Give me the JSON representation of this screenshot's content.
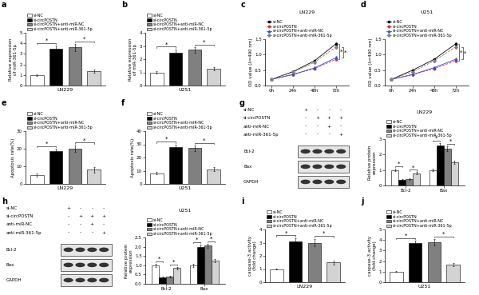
{
  "chart_data": [
    {
      "type": "bar",
      "panel": "a",
      "categories": [
        "si-NC",
        "si-circPOSTN",
        "si-circPOSTN+anti-miR-NC",
        "si-circPOSTN+anti-miR-361-5p"
      ],
      "values": [
        1.0,
        3.5,
        3.6,
        1.4
      ],
      "errors": [
        0.08,
        0.3,
        0.35,
        0.15
      ],
      "colors": [
        "#ffffff",
        "#000000",
        "#808080",
        "#d3d3d3"
      ],
      "ylim": [
        0,
        5
      ],
      "yticks": [
        0,
        1,
        2,
        3,
        4,
        5
      ],
      "x_label": "LN229",
      "y_label": "Relative expression\nof miR-361-5p",
      "legend": "top",
      "tick_labels": "y",
      "annotations": [
        {
          "text": "*",
          "from": 0,
          "to": 1
        },
        {
          "text": "*",
          "from": 2,
          "to": 3
        }
      ]
    },
    {
      "type": "bar",
      "panel": "b",
      "categories": [
        "si-NC",
        "si-circPOSTN",
        "si-circPOSTN+anti-miR-NC",
        "si-circPOSTN+anti-miR-361-5p"
      ],
      "values": [
        1.0,
        2.5,
        2.7,
        1.3
      ],
      "errors": [
        0.08,
        0.25,
        0.2,
        0.12
      ],
      "colors": [
        "#ffffff",
        "#000000",
        "#808080",
        "#d3d3d3"
      ],
      "ylim": [
        0,
        4
      ],
      "yticks": [
        0,
        1,
        2,
        3,
        4
      ],
      "x_label": "U251",
      "y_label": "Relative expression\nof miR-361-5p",
      "legend": "top",
      "tick_labels": "y",
      "annotations": [
        {
          "text": "*",
          "from": 0,
          "to": 1
        },
        {
          "text": "*",
          "from": 2,
          "to": 3
        }
      ]
    },
    {
      "type": "line",
      "panel": "c",
      "title": "LN229",
      "categories": [
        "0h",
        "24h",
        "48h",
        "72h"
      ],
      "series": [
        {
          "name": "si-NC",
          "color": "#000000",
          "marker": "square",
          "line_style": "solid",
          "values": [
            0.2,
            0.45,
            0.8,
            1.35
          ],
          "errors": [
            0.02,
            0.03,
            0.04,
            0.05
          ]
        },
        {
          "name": "si-circPOSTN",
          "color": "#e03030",
          "marker": "circle",
          "line_style": "dashed",
          "values": [
            0.2,
            0.35,
            0.55,
            0.85
          ],
          "errors": [
            0.02,
            0.03,
            0.04,
            0.05
          ]
        },
        {
          "name": "si-circPOSTN+anti-miR-NC",
          "color": "#3050d0",
          "marker": "triangle",
          "line_style": "solid",
          "values": [
            0.2,
            0.36,
            0.57,
            0.9
          ],
          "errors": [
            0.02,
            0.03,
            0.04,
            0.05
          ]
        },
        {
          "name": "si-circPOSTN+anti-miR-361-5p",
          "color": "#808080",
          "marker": "diamond",
          "line_style": "dashed",
          "values": [
            0.2,
            0.43,
            0.75,
            1.25
          ],
          "errors": [
            0.02,
            0.03,
            0.04,
            0.05
          ]
        }
      ],
      "ylim": [
        0,
        1.5
      ],
      "yticks": [
        {
          "value": 0,
          "label": "0.0"
        },
        0.5,
        {
          "value": 1,
          "label": "1.0"
        },
        1.5
      ],
      "y_label": "OD value (λ=490 nm)",
      "legend": "top",
      "annotations": [
        {
          "text": "*",
          "series": [
            0,
            1
          ]
        },
        {
          "text": "*",
          "series": [
            2,
            3
          ]
        }
      ]
    },
    {
      "type": "line",
      "panel": "d",
      "title": "U251",
      "categories": [
        "0h",
        "24h",
        "48h",
        "72h"
      ],
      "series": [
        {
          "name": "si-NC",
          "color": "#000000",
          "marker": "square",
          "line_style": "solid",
          "values": [
            0.2,
            0.5,
            0.85,
            1.35
          ],
          "errors": [
            0.02,
            0.03,
            0.04,
            0.05
          ]
        },
        {
          "name": "si-circPOSTN",
          "color": "#e03030",
          "marker": "circle",
          "line_style": "dashed",
          "values": [
            0.2,
            0.35,
            0.55,
            0.8
          ],
          "errors": [
            0.02,
            0.03,
            0.04,
            0.05
          ]
        },
        {
          "name": "si-circPOSTN+anti-miR-NC",
          "color": "#3050d0",
          "marker": "triangle",
          "line_style": "solid",
          "values": [
            0.2,
            0.36,
            0.58,
            0.85
          ],
          "errors": [
            0.02,
            0.03,
            0.04,
            0.05
          ]
        },
        {
          "name": "si-circPOSTN+anti-miR-361-5p",
          "color": "#808080",
          "marker": "diamond",
          "line_style": "dashed",
          "values": [
            0.2,
            0.45,
            0.8,
            1.25
          ],
          "errors": [
            0.02,
            0.03,
            0.04,
            0.05
          ]
        }
      ],
      "ylim": [
        0,
        1.5
      ],
      "yticks": [
        {
          "value": 0,
          "label": "0.0"
        },
        0.5,
        {
          "value": 1,
          "label": "1.0"
        },
        1.5
      ],
      "y_label": "OD value (λ=490 nm)",
      "legend": "top",
      "annotations": [
        {
          "text": "*",
          "series": [
            0,
            1
          ]
        },
        {
          "text": "*",
          "series": [
            2,
            3
          ]
        }
      ]
    },
    {
      "type": "bar",
      "panel": "e",
      "categories": [
        "si-NC",
        "si-circPOSTN",
        "si-circPOSTN+anti-miR-NC",
        "si-circPOSTN+anti-miR-361-5p"
      ],
      "values": [
        5,
        18.5,
        20,
        8
      ],
      "errors": [
        1,
        1.5,
        2,
        1.5
      ],
      "colors": [
        "#ffffff",
        "#000000",
        "#808080",
        "#d3d3d3"
      ],
      "ylim": [
        0,
        30
      ],
      "yticks": [
        0,
        10,
        20,
        30
      ],
      "x_label": "LN229",
      "y_label": "Apoptosis rate(%)",
      "legend": "top",
      "tick_labels": "y",
      "annotations": [
        {
          "text": "*",
          "from": 0,
          "to": 1
        },
        {
          "text": "*",
          "from": 2,
          "to": 3
        }
      ]
    },
    {
      "type": "bar",
      "panel": "f",
      "categories": [
        "si-NC",
        "si-circPOSTN",
        "si-circPOSTN+anti-miR-NC",
        "si-circPOSTN+anti-miR-361-5p"
      ],
      "values": [
        8,
        28,
        27,
        11
      ],
      "errors": [
        1,
        2,
        2,
        1.5
      ],
      "colors": [
        "#ffffff",
        "#000000",
        "#808080",
        "#d3d3d3"
      ],
      "ylim": [
        0,
        40
      ],
      "yticks": [
        0,
        10,
        20,
        30,
        40
      ],
      "x_label": "U251",
      "y_label": "Apoptosis rate(%)",
      "legend": "top",
      "tick_labels": "y",
      "annotations": [
        {
          "text": "*",
          "from": 0,
          "to": 1
        },
        {
          "text": "*",
          "from": 2,
          "to": 3
        }
      ]
    },
    {
      "type": "blot",
      "panel": "g",
      "conditions": [
        {
          "name": "si-NC",
          "signs": [
            "+",
            "-",
            "-",
            "-"
          ]
        },
        {
          "name": "si-circPOSTN",
          "signs": [
            "-",
            "+",
            "+",
            "+"
          ]
        },
        {
          "name": "anti-miR-NC",
          "signs": [
            "-",
            "-",
            "+",
            "-"
          ]
        },
        {
          "name": "anti-miR-361-5p",
          "signs": [
            "-",
            "-",
            "-",
            "+"
          ]
        }
      ],
      "bands": [
        "Bcl-2",
        "Bax",
        "GAPDH"
      ]
    },
    {
      "type": "grouped_bar",
      "panel": "g",
      "title": "LN229",
      "categories": [
        "Bcl-2",
        "Bax"
      ],
      "series": [
        {
          "name": "si-NC",
          "color": "#ffffff",
          "values": [
            1.0,
            1.0
          ],
          "errors": [
            0.08,
            0.08
          ]
        },
        {
          "name": "si-circPOSTN",
          "color": "#000000",
          "values": [
            0.35,
            2.6
          ],
          "errors": [
            0.04,
            0.15
          ]
        },
        {
          "name": "si-circPOSTN+anti-miR-NC",
          "color": "#808080",
          "values": [
            0.4,
            2.4
          ],
          "errors": [
            0.05,
            0.15
          ]
        },
        {
          "name": "si-circPOSTN+anti-miR-361-5p",
          "color": "#d3d3d3",
          "values": [
            0.8,
            1.5
          ],
          "errors": [
            0.06,
            0.12
          ]
        }
      ],
      "ylim": [
        0,
        3
      ],
      "yticks": [
        0,
        1,
        2,
        3
      ],
      "y_label": "Relative protein\nexpression",
      "legend": "top",
      "annotations": [
        {
          "text": "*",
          "group": 0,
          "from": 0,
          "to": 1
        },
        {
          "text": "*",
          "group": 0,
          "from": 2,
          "to": 3
        },
        {
          "text": "*",
          "group": 1,
          "from": 0,
          "to": 1
        },
        {
          "text": "*",
          "group": 1,
          "from": 2,
          "to": 3
        }
      ]
    },
    {
      "type": "blot",
      "panel": "h",
      "conditions": [
        {
          "name": "si-NC",
          "signs": [
            "+",
            "-",
            "-",
            "-"
          ]
        },
        {
          "name": "si-circPOSTN",
          "signs": [
            "-",
            "+",
            "+",
            "+"
          ]
        },
        {
          "name": "anti-miR-NC",
          "signs": [
            "-",
            "-",
            "+",
            "-"
          ]
        },
        {
          "name": "anti-miR-361-5p",
          "signs": [
            "-",
            "-",
            "-",
            "+"
          ]
        }
      ],
      "bands": [
        "Bcl-2",
        "Bax",
        "GAPDH"
      ]
    },
    {
      "type": "grouped_bar",
      "panel": "h",
      "title": "U251",
      "categories": [
        "Bcl-2",
        "Bax"
      ],
      "series": [
        {
          "name": "si-NC",
          "color": "#ffffff",
          "values": [
            1.0,
            1.0
          ],
          "errors": [
            0.08,
            0.08
          ]
        },
        {
          "name": "si-circPOSTN",
          "color": "#000000",
          "values": [
            0.35,
            2.0
          ],
          "errors": [
            0.04,
            0.12
          ]
        },
        {
          "name": "si-circPOSTN+anti-miR-NC",
          "color": "#808080",
          "values": [
            0.38,
            2.05
          ],
          "errors": [
            0.05,
            0.12
          ]
        },
        {
          "name": "si-circPOSTN+anti-miR-361-5p",
          "color": "#d3d3d3",
          "values": [
            0.85,
            1.25
          ],
          "errors": [
            0.06,
            0.1
          ]
        }
      ],
      "ylim": [
        0,
        2.5
      ],
      "yticks": [
        {
          "value": 0,
          "label": "0.0"
        },
        0.5,
        {
          "value": 1,
          "label": "1.0"
        },
        1.5,
        {
          "value": 2,
          "label": "2.0"
        },
        2.5
      ],
      "y_label": "Relative protein\nexpression",
      "legend": "top",
      "annotations": [
        {
          "text": "*",
          "group": 0,
          "from": 0,
          "to": 1
        },
        {
          "text": "*",
          "group": 0,
          "from": 2,
          "to": 3
        },
        {
          "text": "*",
          "group": 1,
          "from": 0,
          "to": 1
        },
        {
          "text": "*",
          "group": 1,
          "from": 2,
          "to": 3
        }
      ]
    },
    {
      "type": "bar",
      "panel": "i",
      "categories": [
        "si-NC",
        "si-circPOSTN",
        "si-circPOSTN+anti-miR-NC",
        "si-circPOSTN+anti-miR-361-5p"
      ],
      "values": [
        1.0,
        3.1,
        3.0,
        1.5
      ],
      "errors": [
        0.05,
        0.25,
        0.3,
        0.15
      ],
      "colors": [
        "#ffffff",
        "#000000",
        "#808080",
        "#d3d3d3"
      ],
      "ylim": [
        0,
        4
      ],
      "yticks": [
        0,
        1,
        2,
        3,
        4
      ],
      "x_label": "LN229",
      "y_label": "caspase-3 activity\n(fold change)",
      "legend": "top",
      "tick_labels": "y",
      "annotations": [
        {
          "text": "*",
          "from": 0,
          "to": 1
        },
        {
          "text": "*",
          "from": 2,
          "to": 3
        }
      ]
    },
    {
      "type": "bar",
      "panel": "j",
      "categories": [
        "si-NC",
        "si-circPOSTN",
        "si-circPOSTN+anti-miR-NC",
        "si-circPOSTN+anti-miR-361-5p"
      ],
      "values": [
        1.0,
        3.7,
        3.8,
        1.7
      ],
      "errors": [
        0.05,
        0.25,
        0.3,
        0.15
      ],
      "colors": [
        "#ffffff",
        "#000000",
        "#808080",
        "#d3d3d3"
      ],
      "ylim": [
        0,
        5
      ],
      "yticks": [
        0,
        1,
        2,
        3,
        4,
        5
      ],
      "x_label": "U251",
      "y_label": "caspase-3 activity\n(fold change)",
      "legend": "top",
      "tick_labels": "y",
      "annotations": [
        {
          "text": "*",
          "from": 0,
          "to": 1
        },
        {
          "text": "*",
          "from": 2,
          "to": 3
        }
      ]
    }
  ]
}
